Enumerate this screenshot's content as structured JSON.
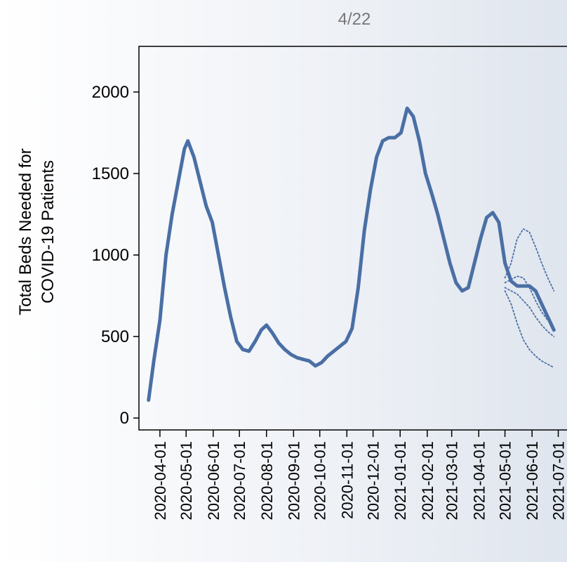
{
  "chart_data": {
    "type": "line",
    "title": "4/22",
    "ylabel": [
      "Total Beds Needed for",
      "COVID-19 Patients"
    ],
    "x": [
      "2020-03-19",
      "2020-03-25",
      "2020-04-01",
      "2020-04-08",
      "2020-04-15",
      "2020-04-22",
      "2020-04-29",
      "2020-05-03",
      "2020-05-10",
      "2020-05-17",
      "2020-05-24",
      "2020-05-31",
      "2020-06-07",
      "2020-06-14",
      "2020-06-21",
      "2020-06-28",
      "2020-07-05",
      "2020-07-12",
      "2020-07-19",
      "2020-07-26",
      "2020-08-01",
      "2020-08-08",
      "2020-08-15",
      "2020-08-22",
      "2020-08-29",
      "2020-09-05",
      "2020-09-12",
      "2020-09-19",
      "2020-09-26",
      "2020-10-03",
      "2020-10-10",
      "2020-10-17",
      "2020-10-24",
      "2020-10-31",
      "2020-11-07",
      "2020-11-14",
      "2020-11-21",
      "2020-11-28",
      "2020-12-05",
      "2020-12-12",
      "2020-12-19",
      "2020-12-26",
      "2021-01-02",
      "2021-01-09",
      "2021-01-16",
      "2021-01-23",
      "2021-01-30",
      "2021-02-06",
      "2021-02-13",
      "2021-02-20",
      "2021-02-27",
      "2021-03-06",
      "2021-03-13",
      "2021-03-20",
      "2021-03-27",
      "2021-04-03",
      "2021-04-10",
      "2021-04-17",
      "2021-04-24",
      "2021-05-01",
      "2021-05-08",
      "2021-05-15",
      "2021-05-22",
      "2021-05-29",
      "2021-06-05",
      "2021-06-12",
      "2021-06-19",
      "2021-06-26"
    ],
    "series": [
      {
        "color": "#4a6fa5",
        "style": "solid",
        "values": [
          110,
          350,
          600,
          1000,
          1250,
          1450,
          1650,
          1700,
          1600,
          1450,
          1300,
          1200,
          1000,
          800,
          620,
          470,
          420,
          410,
          470,
          540,
          570,
          520,
          460,
          420,
          390,
          370,
          360,
          350,
          320,
          340,
          380,
          410,
          440,
          470,
          550,
          800,
          1150,
          1400,
          1600,
          1700,
          1720,
          1720,
          1750,
          1900,
          1850,
          1700,
          1500,
          1380,
          1250,
          1100,
          950,
          830,
          780,
          800,
          950,
          1100,
          1230,
          1260,
          1200,
          950,
          840,
          810,
          810,
          810,
          780,
          700,
          620,
          540
        ]
      },
      {
        "color": "#4a6fa5",
        "style": "dotted",
        "x": [
          "2021-05-01",
          "2021-05-08",
          "2021-05-15",
          "2021-05-22",
          "2021-05-29",
          "2021-06-05",
          "2021-06-12",
          "2021-06-19",
          "2021-06-26"
        ],
        "values": [
          860,
          950,
          1100,
          1160,
          1140,
          1050,
          950,
          860,
          780
        ]
      },
      {
        "color": "#4a6fa5",
        "style": "dotted",
        "x": [
          "2021-05-01",
          "2021-05-08",
          "2021-05-15",
          "2021-05-22",
          "2021-05-29",
          "2021-06-05",
          "2021-06-12",
          "2021-06-19",
          "2021-06-26"
        ],
        "values": [
          830,
          850,
          870,
          860,
          800,
          720,
          650,
          600,
          550
        ]
      },
      {
        "color": "#4a6fa5",
        "style": "dotted",
        "x": [
          "2021-05-01",
          "2021-05-08",
          "2021-05-15",
          "2021-05-22",
          "2021-05-29",
          "2021-06-05",
          "2021-06-12",
          "2021-06-19",
          "2021-06-26"
        ],
        "values": [
          800,
          780,
          760,
          720,
          680,
          620,
          570,
          530,
          500
        ]
      },
      {
        "color": "#4a6fa5",
        "style": "dotted",
        "x": [
          "2021-05-01",
          "2021-05-08",
          "2021-05-15",
          "2021-05-22",
          "2021-05-29",
          "2021-06-05",
          "2021-06-12",
          "2021-06-19",
          "2021-06-26"
        ],
        "values": [
          780,
          700,
          580,
          480,
          420,
          380,
          350,
          330,
          310
        ]
      }
    ],
    "xlim": [
      "2020-03-08",
      "2021-07-11"
    ],
    "xticks": [
      "2020-04-01",
      "2020-05-01",
      "2020-06-01",
      "2020-07-01",
      "2020-08-01",
      "2020-09-01",
      "2020-10-01",
      "2020-11-01",
      "2020-12-01",
      "2021-01-01",
      "2021-02-01",
      "2021-03-01",
      "2021-04-01",
      "2021-05-01",
      "2021-06-01",
      "2021-07-01"
    ],
    "ylim": [
      -73,
      2280
    ],
    "yticks": [
      0,
      500,
      1000,
      1500,
      2000
    ]
  }
}
